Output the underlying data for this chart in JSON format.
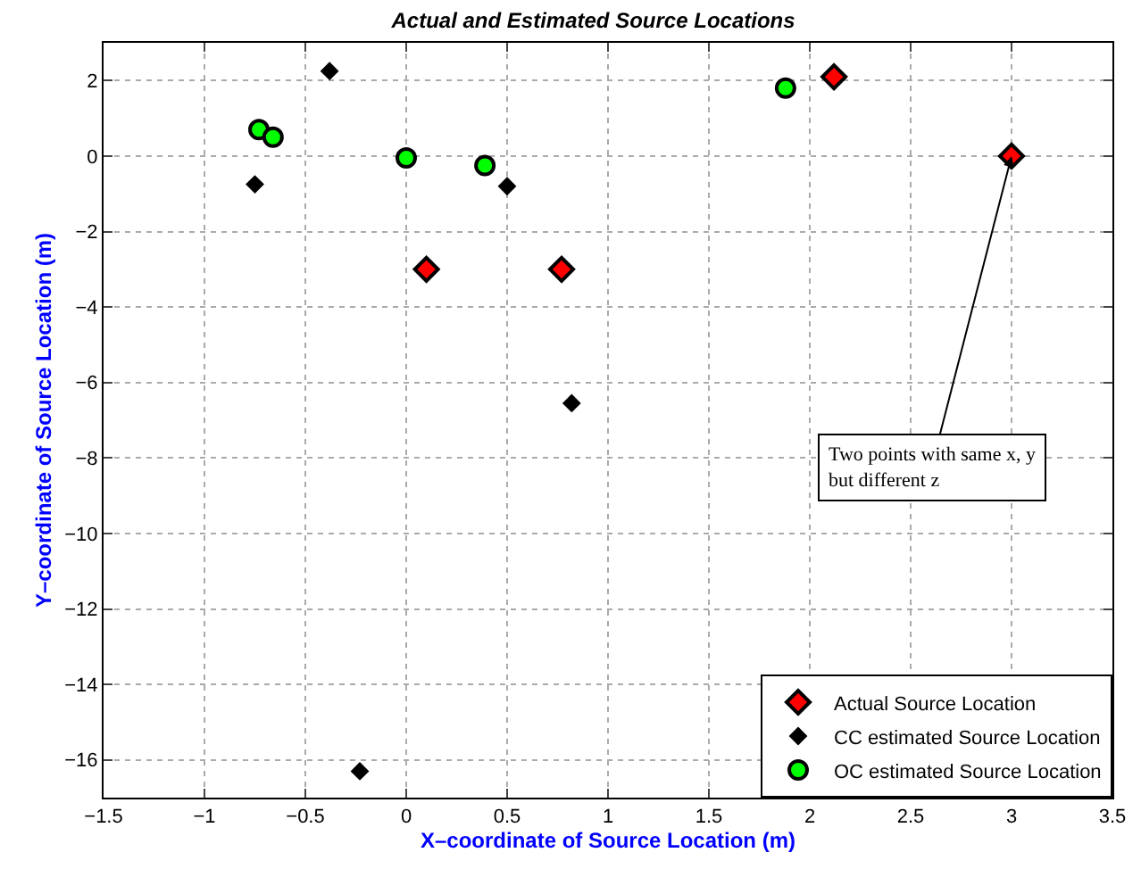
{
  "chart_data": {
    "type": "scatter",
    "title": "Actual and Estimated Source Locations",
    "xlabel": "X–coordinate of Source Location (m)",
    "ylabel": "Y–coordinate of Source Location (m)",
    "series": [
      {
        "name": "Actual Source Location",
        "color": "#ff0000",
        "marker": "diamond",
        "x": [
          0.1,
          0.77,
          2.12,
          3
        ],
        "values": [
          -3,
          -3,
          2.1,
          0
        ]
      },
      {
        "name": "CC estimated Source Location",
        "color": "#000000",
        "marker": "diamond",
        "x": [
          -0.75,
          -0.38,
          0.5,
          0.82,
          -0.23
        ],
        "values": [
          -0.75,
          2.25,
          -0.8,
          -6.55,
          -16.3
        ]
      },
      {
        "name": "OC estimated Source Location",
        "color": "#00ff00",
        "marker": "circle",
        "x": [
          -0.73,
          -0.66,
          0,
          0.39,
          1.88
        ],
        "values": [
          0.7,
          0.5,
          -0.05,
          -0.25,
          1.8
        ]
      }
    ],
    "xlim": [
      -1.5,
      3.5
    ],
    "xticks": [
      -1.5,
      -1,
      -0.5,
      0,
      0.5,
      1,
      1.5,
      2,
      2.5,
      3,
      3.5
    ],
    "ylim": [
      -17,
      3
    ],
    "yticks": [
      -16,
      -14,
      -12,
      -10,
      -8,
      -6,
      -4,
      -2,
      0,
      2
    ],
    "annotations": [
      {
        "text": "Two points with same x, y\nbut different z",
        "x": 3,
        "y": 0
      }
    ],
    "grid": true,
    "legend": "bottom right"
  }
}
